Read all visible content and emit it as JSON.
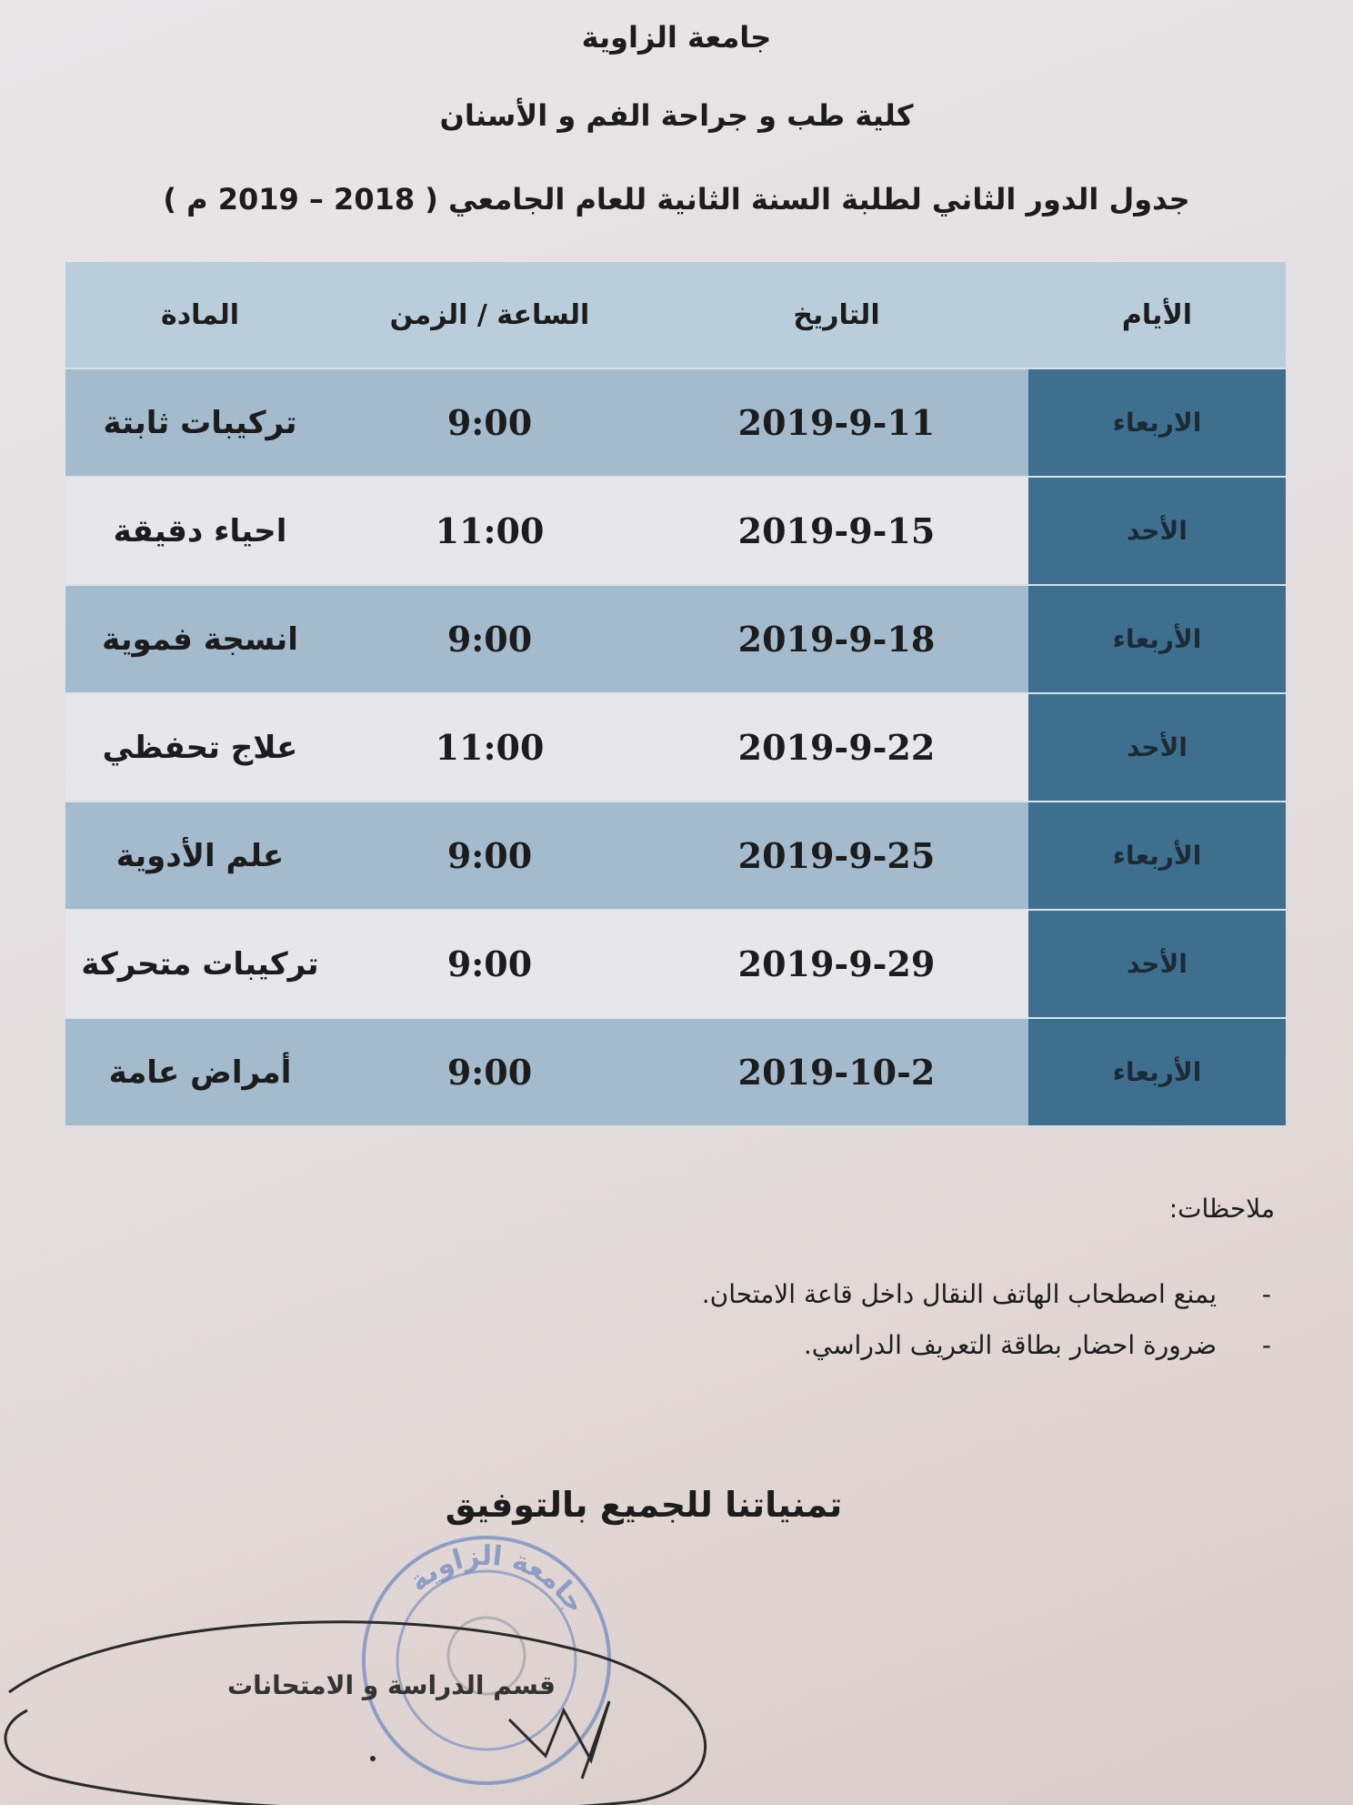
{
  "header": {
    "university": "جامعة الزاوية",
    "faculty": "كلية طب و جراحة الفم و الأسنان",
    "schedule_title": "جدول الدور الثاني لطلبة السنة الثانية للعام الجامعي ( 2018 – 2019 م )"
  },
  "table": {
    "columns": [
      "الأيام",
      "التاريخ",
      "الساعة / الزمن",
      "المادة"
    ],
    "rows": [
      {
        "day": "الاربعاء",
        "date": "2019-9-11",
        "time": "9:00",
        "subject": "تركيبات ثابتة"
      },
      {
        "day": "الأحد",
        "date": "2019-9-15",
        "time": "11:00",
        "subject": "احياء دقيقة"
      },
      {
        "day": "الأربعاء",
        "date": "2019-9-18",
        "time": "9:00",
        "subject": "انسجة فموية"
      },
      {
        "day": "الأحد",
        "date": "2019-9-22",
        "time": "11:00",
        "subject": "علاج تحفظي"
      },
      {
        "day": "الأربعاء",
        "date": "2019-9-25",
        "time": "9:00",
        "subject": "علم الأدوية"
      },
      {
        "day": "الأحد",
        "date": "2019-9-29",
        "time": "9:00",
        "subject": "تركيبات متحركة"
      },
      {
        "day": "الأربعاء",
        "date": "2019-10-2",
        "time": "9:00",
        "subject": "أمراض عامة"
      }
    ],
    "colors": {
      "header": "#b9cddb",
      "day_column": "#3f6f8f",
      "shaded_row": "#a3bbcd",
      "light_row": "#e7e7eb"
    }
  },
  "notes": {
    "title": "ملاحظات:",
    "items": [
      "يمنع اصطحاب الهاتف النقال داخل قاعة الامتحان.",
      "ضرورة احضار بطاقة التعريف الدراسي."
    ]
  },
  "closing": "تمنياتنا للجميع بالتوفيق",
  "signature_block": "قسم الدراسة و الامتحانات",
  "stamp_text": "جامعة الزاوية",
  "stamp_color": "#5a78b8"
}
